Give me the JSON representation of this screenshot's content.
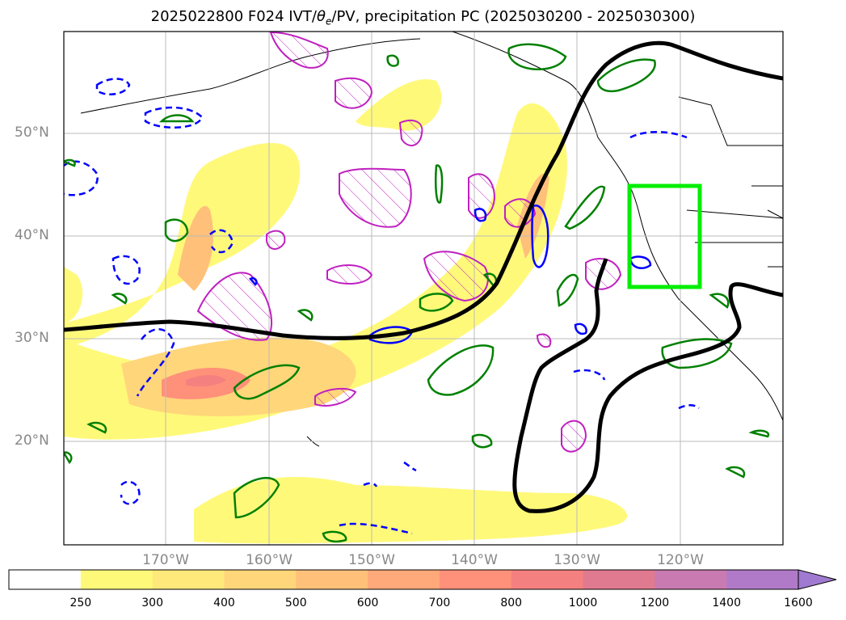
{
  "title": "2025022800 F024 IVT/θe/PV, precipitation PC (2025030200 - 2025030300)",
  "title_parts": {
    "prefix": "2025022800 F024 IVT/",
    "theta": "θ",
    "theta_sub": "e",
    "suffix": "/PV, precipitation PC (2025030200 - 2025030300)"
  },
  "lat_labels": [
    "50°N",
    "40°N",
    "30°N",
    "20°N"
  ],
  "lon_labels": [
    "170°W",
    "160°W",
    "150°W",
    "140°W",
    "130°W",
    "120°W"
  ],
  "colorbar": {
    "levels": [
      "250",
      "300",
      "400",
      "500",
      "600",
      "700",
      "800",
      "1000",
      "1200",
      "1400",
      "1600"
    ],
    "colors": [
      "#ffffff",
      "#fff97a",
      "#ffe97a",
      "#ffd67a",
      "#ffc07a",
      "#ffa87a",
      "#ff907a",
      "#f58080",
      "#e07a90",
      "#c97ab0",
      "#b07ac8",
      "#a07ad0"
    ]
  },
  "colors": {
    "ivt_fill": "#ffe27a",
    "theta_e_contour": "#000000",
    "pv_positive": "#008000",
    "pv_negative": "#0000ff",
    "magenta_hatched": "#c020c0",
    "target_box": "#00ee00",
    "grid": "#bbbbbb",
    "axis_label": "#888888"
  }
}
